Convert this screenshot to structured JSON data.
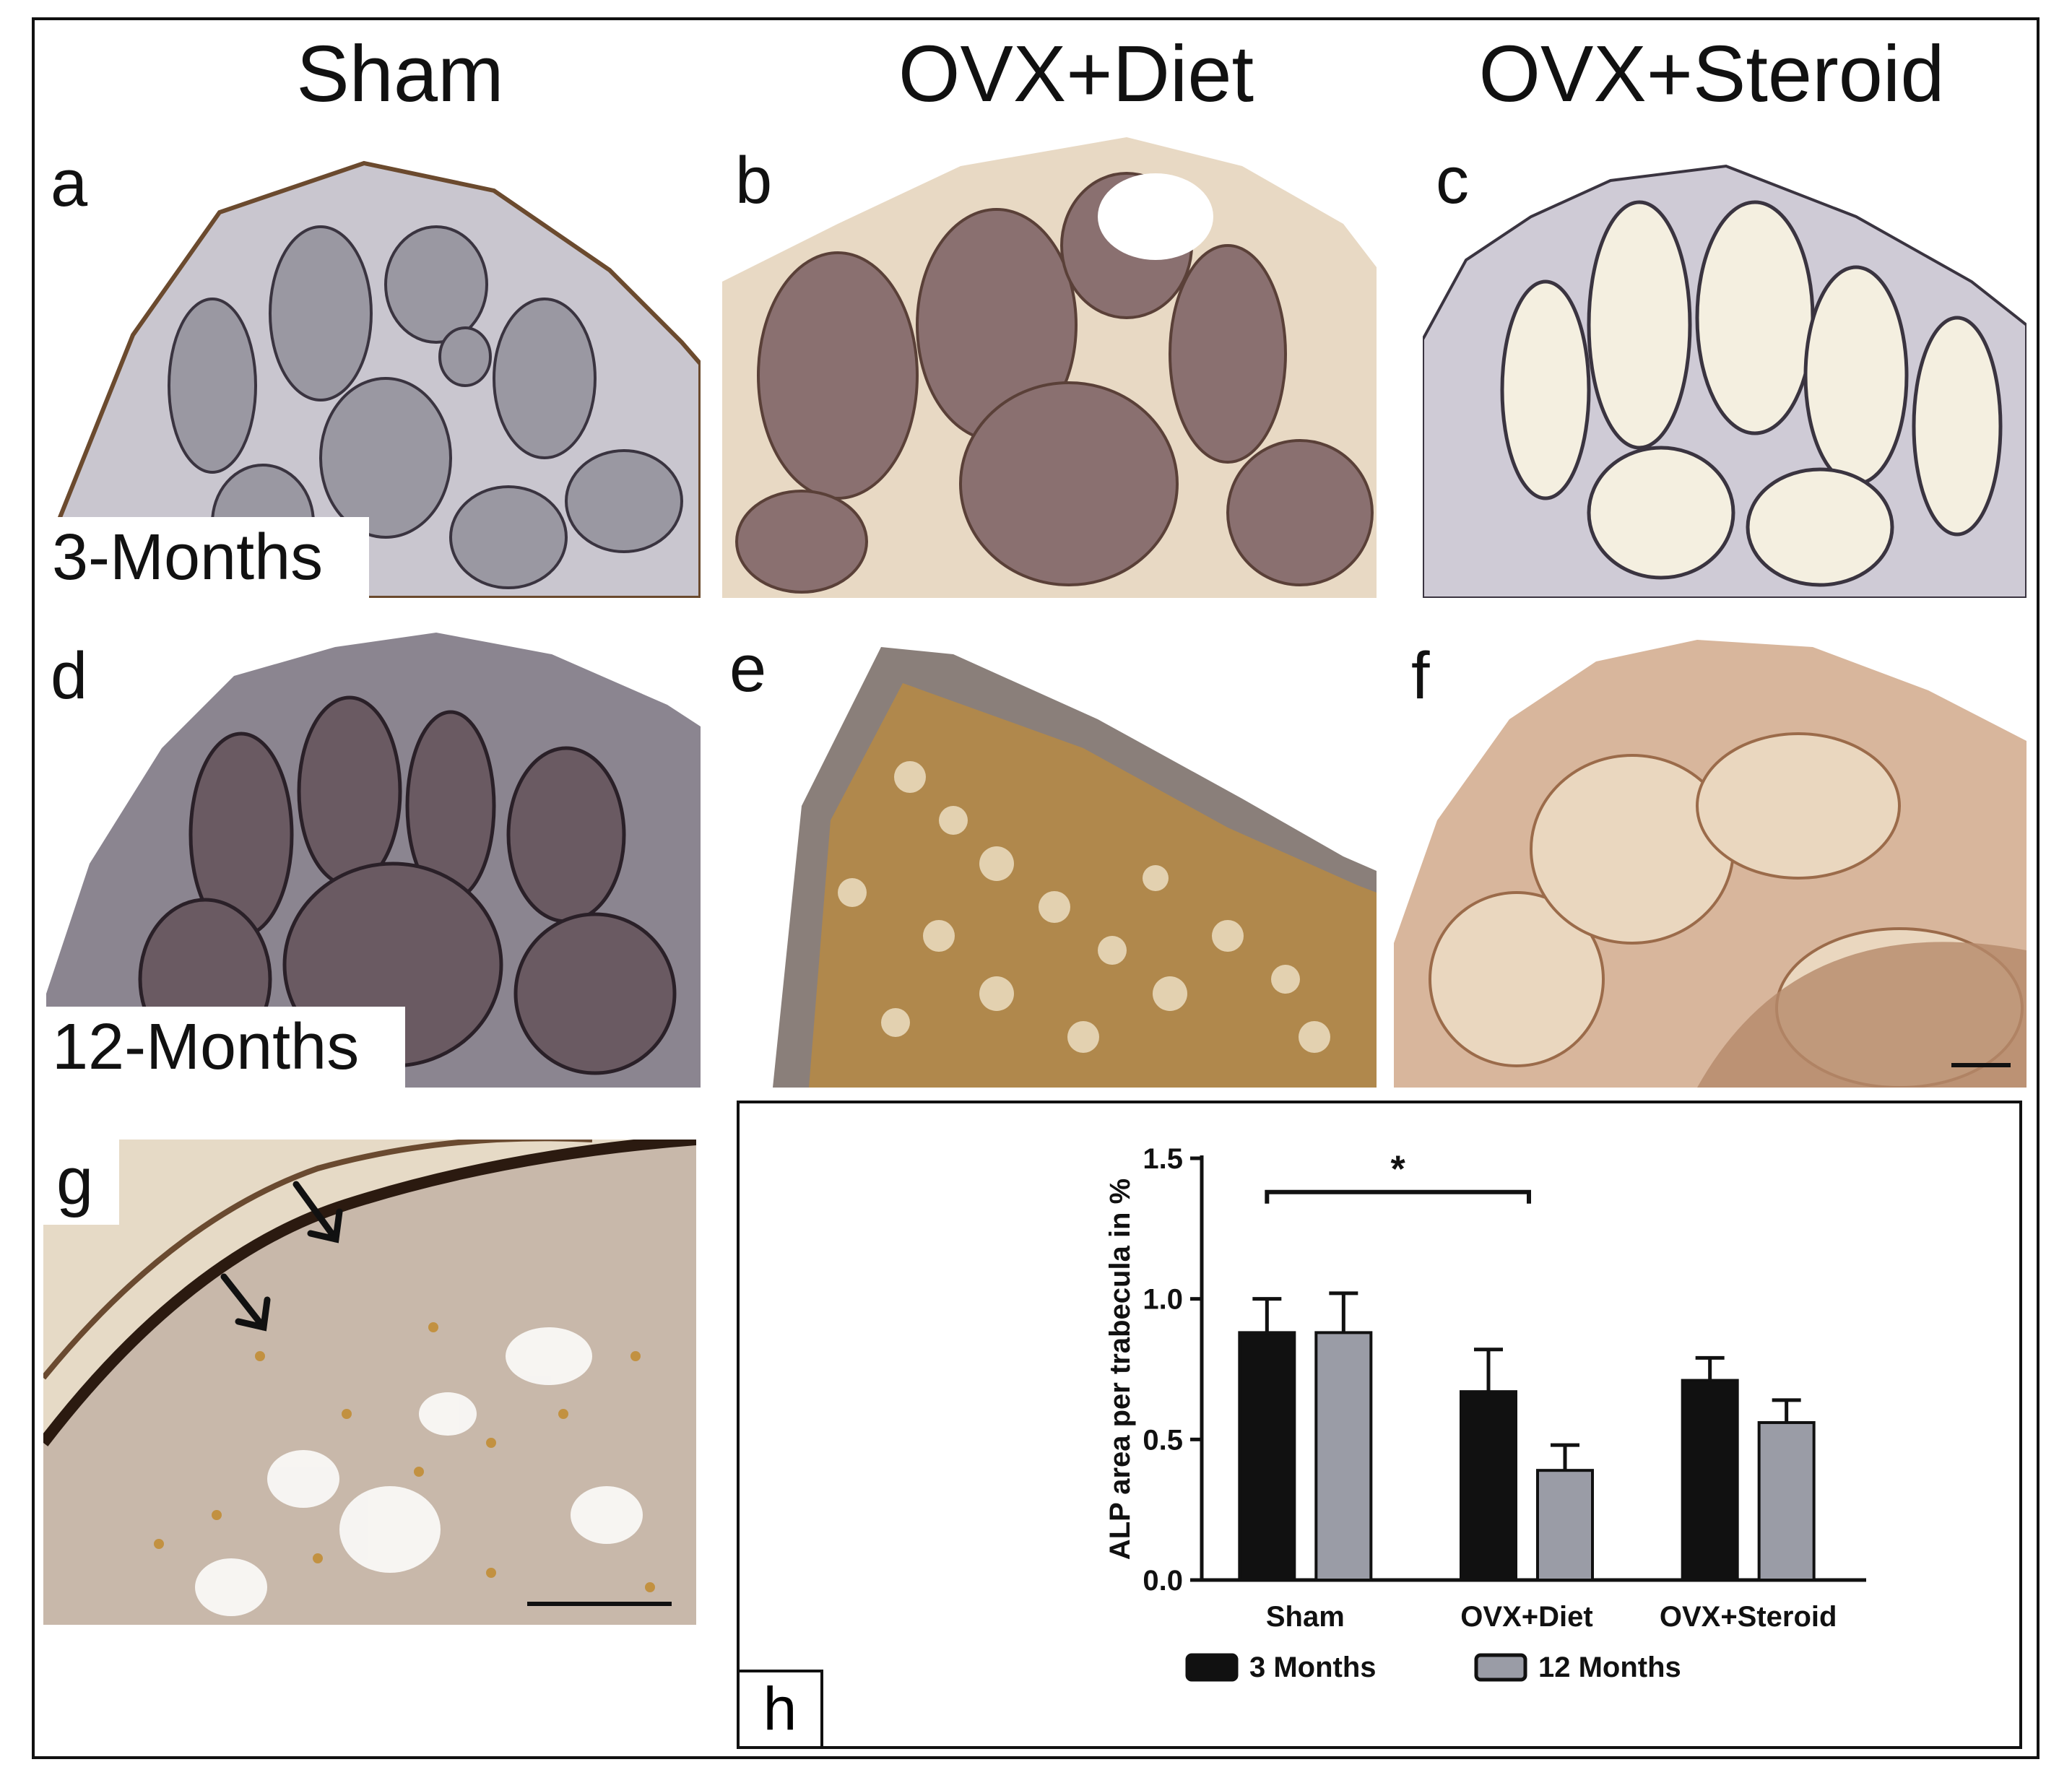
{
  "columns": [
    "Sham",
    "OVX+Diet",
    "OVX+Steroid"
  ],
  "panels": {
    "a": "a",
    "b": "b",
    "c": "c",
    "d": "d",
    "e": "e",
    "f": "f",
    "g": "g",
    "h": "h"
  },
  "row_labels": {
    "row1": "3-Months",
    "row2": "12-Months"
  },
  "chart_data": {
    "type": "bar",
    "categories": [
      "Sham",
      "OVX+Diet",
      "OVX+Steroid"
    ],
    "series": [
      {
        "name": "3 Months",
        "values": [
          0.88,
          0.67,
          0.71
        ],
        "errors": [
          0.12,
          0.15,
          0.08
        ],
        "color": "#111111"
      },
      {
        "name": "12 Months",
        "values": [
          0.88,
          0.39,
          0.56
        ],
        "errors": [
          0.14,
          0.09,
          0.08
        ],
        "color": "#9a9ca6"
      }
    ],
    "ylabel": "ALP area per trabecula in %",
    "yticks": [
      "0.0",
      "0.5",
      "1.0",
      "1.5"
    ],
    "ylim": [
      0,
      1.5
    ],
    "significance": {
      "from": "Sham",
      "to": "OVX+Diet",
      "label": "*"
    },
    "legend_placement": "bottom"
  },
  "colors": {
    "frame": "#111111",
    "bar_dark": "#111111",
    "bar_grey": "#9a9ca6"
  }
}
